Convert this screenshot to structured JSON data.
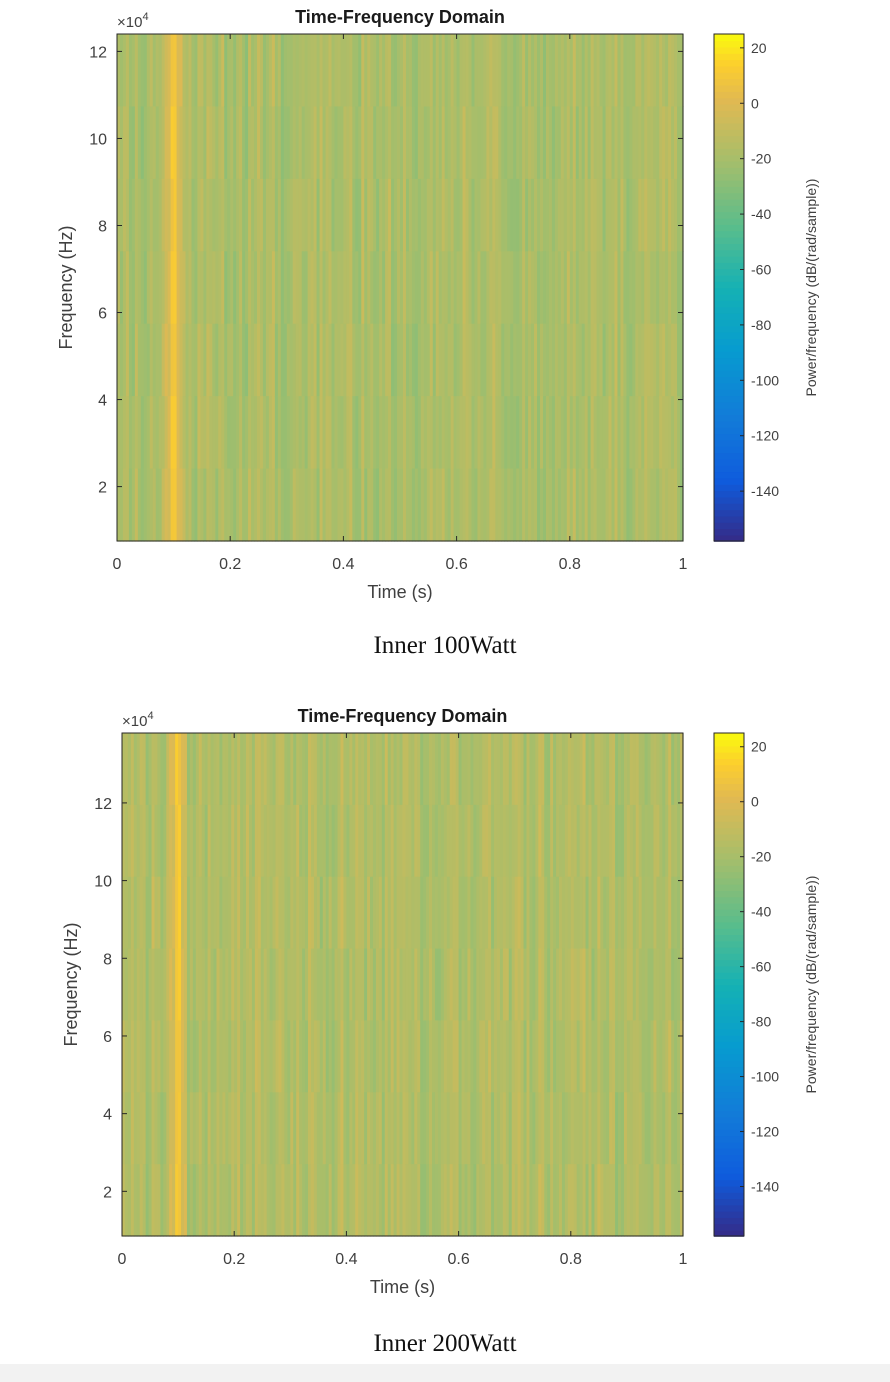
{
  "chart_data": [
    {
      "type": "heatmap",
      "title": "Time-Frequency Domain",
      "xlabel": "Time (s)",
      "ylabel": "Frequency (Hz)",
      "y_exponent_label": "×10",
      "y_exponent_power": "4",
      "xlim": [
        0,
        1
      ],
      "ylim": [
        0.75,
        12.4
      ],
      "xticks": [
        0,
        0.2,
        0.4,
        0.6,
        0.8,
        1
      ],
      "xtick_labels": [
        "0",
        "0.2",
        "0.4",
        "0.6",
        "0.8",
        "1"
      ],
      "yticks": [
        2,
        4,
        6,
        8,
        10,
        12
      ],
      "ytick_labels": [
        "2",
        "4",
        "6",
        "8",
        "10",
        "12"
      ],
      "colorbar": {
        "label": "Power/frequency (dB/(rad/sample))",
        "range": [
          -158,
          25
        ],
        "ticks": [
          20,
          0,
          -20,
          -40,
          -60,
          -80,
          -100,
          -120,
          -140
        ],
        "tick_labels": [
          "20",
          "0",
          "-20",
          "-40",
          "-60",
          "-80",
          "-100",
          "-120",
          "-140"
        ],
        "colormap": "parula"
      },
      "dominant_power_db": -18,
      "peak": {
        "time_s": 0.1,
        "power_db": 10
      },
      "caption": "Inner 100Watt"
    },
    {
      "type": "heatmap",
      "title": "Time-Frequency Domain",
      "xlabel": "Time (s)",
      "ylabel": "Frequency (Hz)",
      "y_exponent_label": "×10",
      "y_exponent_power": "4",
      "xlim": [
        0,
        1
      ],
      "ylim": [
        0.85,
        13.8
      ],
      "xticks": [
        0,
        0.2,
        0.4,
        0.6,
        0.8,
        1
      ],
      "xtick_labels": [
        "0",
        "0.2",
        "0.4",
        "0.6",
        "0.8",
        "1"
      ],
      "yticks": [
        2,
        4,
        6,
        8,
        10,
        12
      ],
      "ytick_labels": [
        "2",
        "4",
        "6",
        "8",
        "10",
        "12"
      ],
      "colorbar": {
        "label": "Power/frequency (dB/(rad/sample))",
        "range": [
          -158,
          25
        ],
        "ticks": [
          20,
          0,
          -20,
          -40,
          -60,
          -80,
          -100,
          -120,
          -140
        ],
        "tick_labels": [
          "20",
          "0",
          "-20",
          "-40",
          "-60",
          "-80",
          "-100",
          "-120",
          "-140"
        ],
        "colormap": "parula"
      },
      "dominant_power_db": -16,
      "peak": {
        "time_s": 0.1,
        "power_db": 10
      },
      "caption": "Inner 200Watt"
    }
  ]
}
